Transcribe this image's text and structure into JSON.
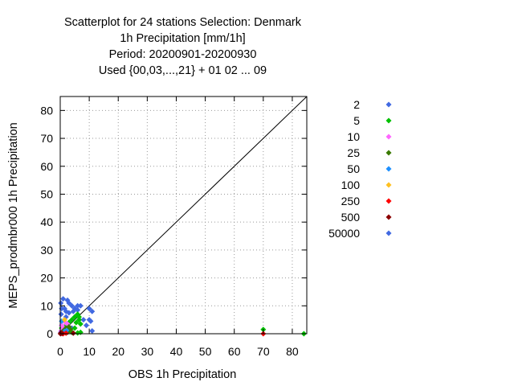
{
  "titles": {
    "line1": "Scatterplot for   24 stations Selection: Denmark",
    "line2": "1h Precipitation [mm/1h]",
    "line3": "Period: 20200901-20200930",
    "line4": "Used {00,03,...,21} + 01 02 ... 09"
  },
  "chart_data": {
    "type": "scatter",
    "xlabel": "OBS 1h Precipitation",
    "ylabel": "MEPS_prodmbr000 1h Precipitation",
    "xlim": [
      0,
      85
    ],
    "ylim": [
      0,
      85
    ],
    "xticks": [
      0,
      10,
      20,
      30,
      40,
      50,
      60,
      70,
      80
    ],
    "yticks": [
      0,
      10,
      20,
      30,
      40,
      50,
      60,
      70,
      80
    ],
    "grid": true,
    "diagonal_line": true,
    "legend_placement": "right",
    "series": [
      {
        "name": "2",
        "color": "#4169e1",
        "points": [
          [
            0.2,
            11
          ],
          [
            0.5,
            9
          ],
          [
            1,
            12.5
          ],
          [
            1.5,
            9
          ],
          [
            2,
            8
          ],
          [
            3,
            11
          ],
          [
            0.3,
            7
          ],
          [
            4,
            10
          ],
          [
            5,
            9
          ],
          [
            6,
            8.5
          ],
          [
            7,
            10
          ],
          [
            10,
            9
          ],
          [
            11,
            8
          ],
          [
            11,
            1
          ],
          [
            2,
            6
          ],
          [
            0.5,
            3
          ],
          [
            3,
            4
          ],
          [
            4,
            2
          ],
          [
            5,
            6
          ],
          [
            8,
            5
          ],
          [
            9,
            3
          ],
          [
            10,
            5
          ],
          [
            10.5,
            4.5
          ],
          [
            1,
            1
          ],
          [
            0.2,
            0.5
          ],
          [
            2.5,
            12
          ],
          [
            6,
            10
          ],
          [
            3,
            7.5
          ],
          [
            4.5,
            8
          ]
        ]
      },
      {
        "name": "5",
        "color": "#00c000",
        "points": [
          [
            0.5,
            2
          ],
          [
            1,
            1.5
          ],
          [
            2,
            3
          ],
          [
            3,
            4
          ],
          [
            4,
            5
          ],
          [
            5,
            6
          ],
          [
            6,
            7
          ],
          [
            6.5,
            5
          ],
          [
            7,
            3.5
          ],
          [
            3.5,
            1
          ],
          [
            4,
            0.5
          ],
          [
            5,
            2
          ],
          [
            7,
            0.5
          ],
          [
            2,
            0.3
          ],
          [
            5.5,
            4
          ],
          [
            6.5,
            6
          ],
          [
            70,
            1.5
          ],
          [
            84,
            0
          ],
          [
            1,
            0.2
          ],
          [
            6,
            0.3
          ]
        ]
      },
      {
        "name": "10",
        "color": "#ff66ff",
        "points": [
          [
            0.5,
            3
          ],
          [
            1.2,
            2
          ],
          [
            1.8,
            4
          ],
          [
            0.3,
            1
          ],
          [
            2.5,
            3.5
          ]
        ]
      },
      {
        "name": "25",
        "color": "#3a7a00",
        "points": [
          [
            1,
            1
          ],
          [
            2,
            2
          ],
          [
            3,
            2.5
          ],
          [
            2.5,
            0.5
          ],
          [
            0.8,
            0.3
          ],
          [
            3.5,
            1.5
          ]
        ]
      },
      {
        "name": "50",
        "color": "#1e90ff",
        "points": [
          [
            0.5,
            4.5
          ],
          [
            1.5,
            0.8
          ],
          [
            2.2,
            1.2
          ]
        ]
      },
      {
        "name": "100",
        "color": "#ffc020",
        "points": [
          [
            1.5,
            5
          ]
        ]
      },
      {
        "name": "250",
        "color": "#ff0000",
        "points": [
          [
            0.3,
            0.3
          ],
          [
            70,
            0
          ],
          [
            2,
            0.2
          ],
          [
            1,
            0
          ]
        ]
      },
      {
        "name": "500",
        "color": "#8b0000",
        "points": [
          [
            0.2,
            0.2
          ],
          [
            0.6,
            0.1
          ],
          [
            4.5,
            0.2
          ],
          [
            0.1,
            0
          ]
        ]
      },
      {
        "name": "50000",
        "color": "#4169e1",
        "points": []
      }
    ]
  }
}
